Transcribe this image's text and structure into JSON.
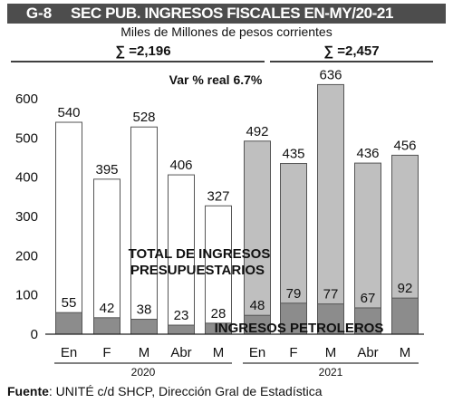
{
  "header": {
    "code": "G-8",
    "title": "SEC PUB. INGRESOS FISCALES EN-MY/20-21",
    "subtitle": "Miles de Millones de pesos corrientes"
  },
  "annotations": {
    "sum_2020": "∑ =2,196",
    "sum_2021": "∑ =2,457",
    "var": "Var % real 6.7%",
    "label_total_line1": "TOTAL DE INGRESOS",
    "label_total_line2": "PRESUPUESTARIOS",
    "label_petroleros": "INGRESOS PETROLEROS"
  },
  "footer": {
    "label": "Fuente",
    "text": ": UNITÉ c/d SHCP, Dirección Gral de Estadística"
  },
  "colors": {
    "total_2020": "#ffffff",
    "total_2021": "#bfbfbf",
    "petroleros": "#8c8c8c",
    "title_bg": "#4d4d4d",
    "rule": "#000000"
  },
  "chart_data": {
    "type": "bar",
    "categories": [
      "En",
      "F",
      "M",
      "Abr",
      "M",
      "En",
      "F",
      "M",
      "Abr",
      "M"
    ],
    "groups": [
      {
        "year": "2020",
        "count": 5
      },
      {
        "year": "2021",
        "count": 5
      }
    ],
    "series": [
      {
        "name": "TOTAL DE INGRESOS PRESUPUESTARIOS",
        "values": [
          540,
          395,
          528,
          406,
          327,
          492,
          435,
          636,
          436,
          456
        ]
      },
      {
        "name": "INGRESOS PETROLEROS",
        "values": [
          55,
          42,
          38,
          23,
          28,
          48,
          79,
          77,
          67,
          92
        ]
      }
    ],
    "yticks": [
      0,
      100,
      200,
      300,
      400,
      500,
      600
    ],
    "ylim": [
      0,
      640
    ],
    "grid": false
  }
}
